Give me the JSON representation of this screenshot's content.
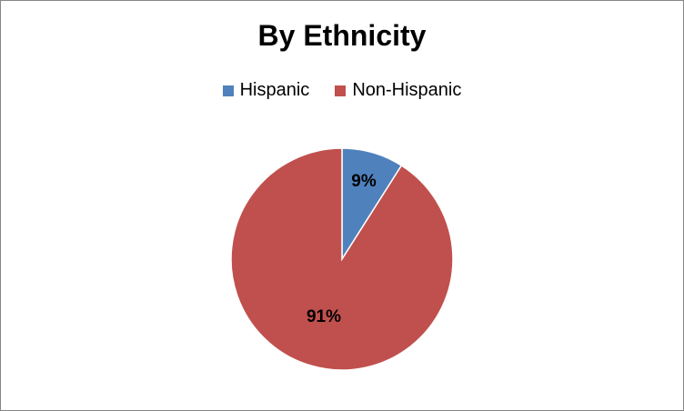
{
  "chart_data": {
    "type": "pie",
    "title": "By Ethnicity",
    "categories": [
      "Hispanic",
      "Non-Hispanic"
    ],
    "values": [
      9,
      91
    ],
    "data_labels": [
      "9%",
      "91%"
    ],
    "colors": [
      "#4F81BD",
      "#C0504D"
    ],
    "legend_placement": "top"
  }
}
